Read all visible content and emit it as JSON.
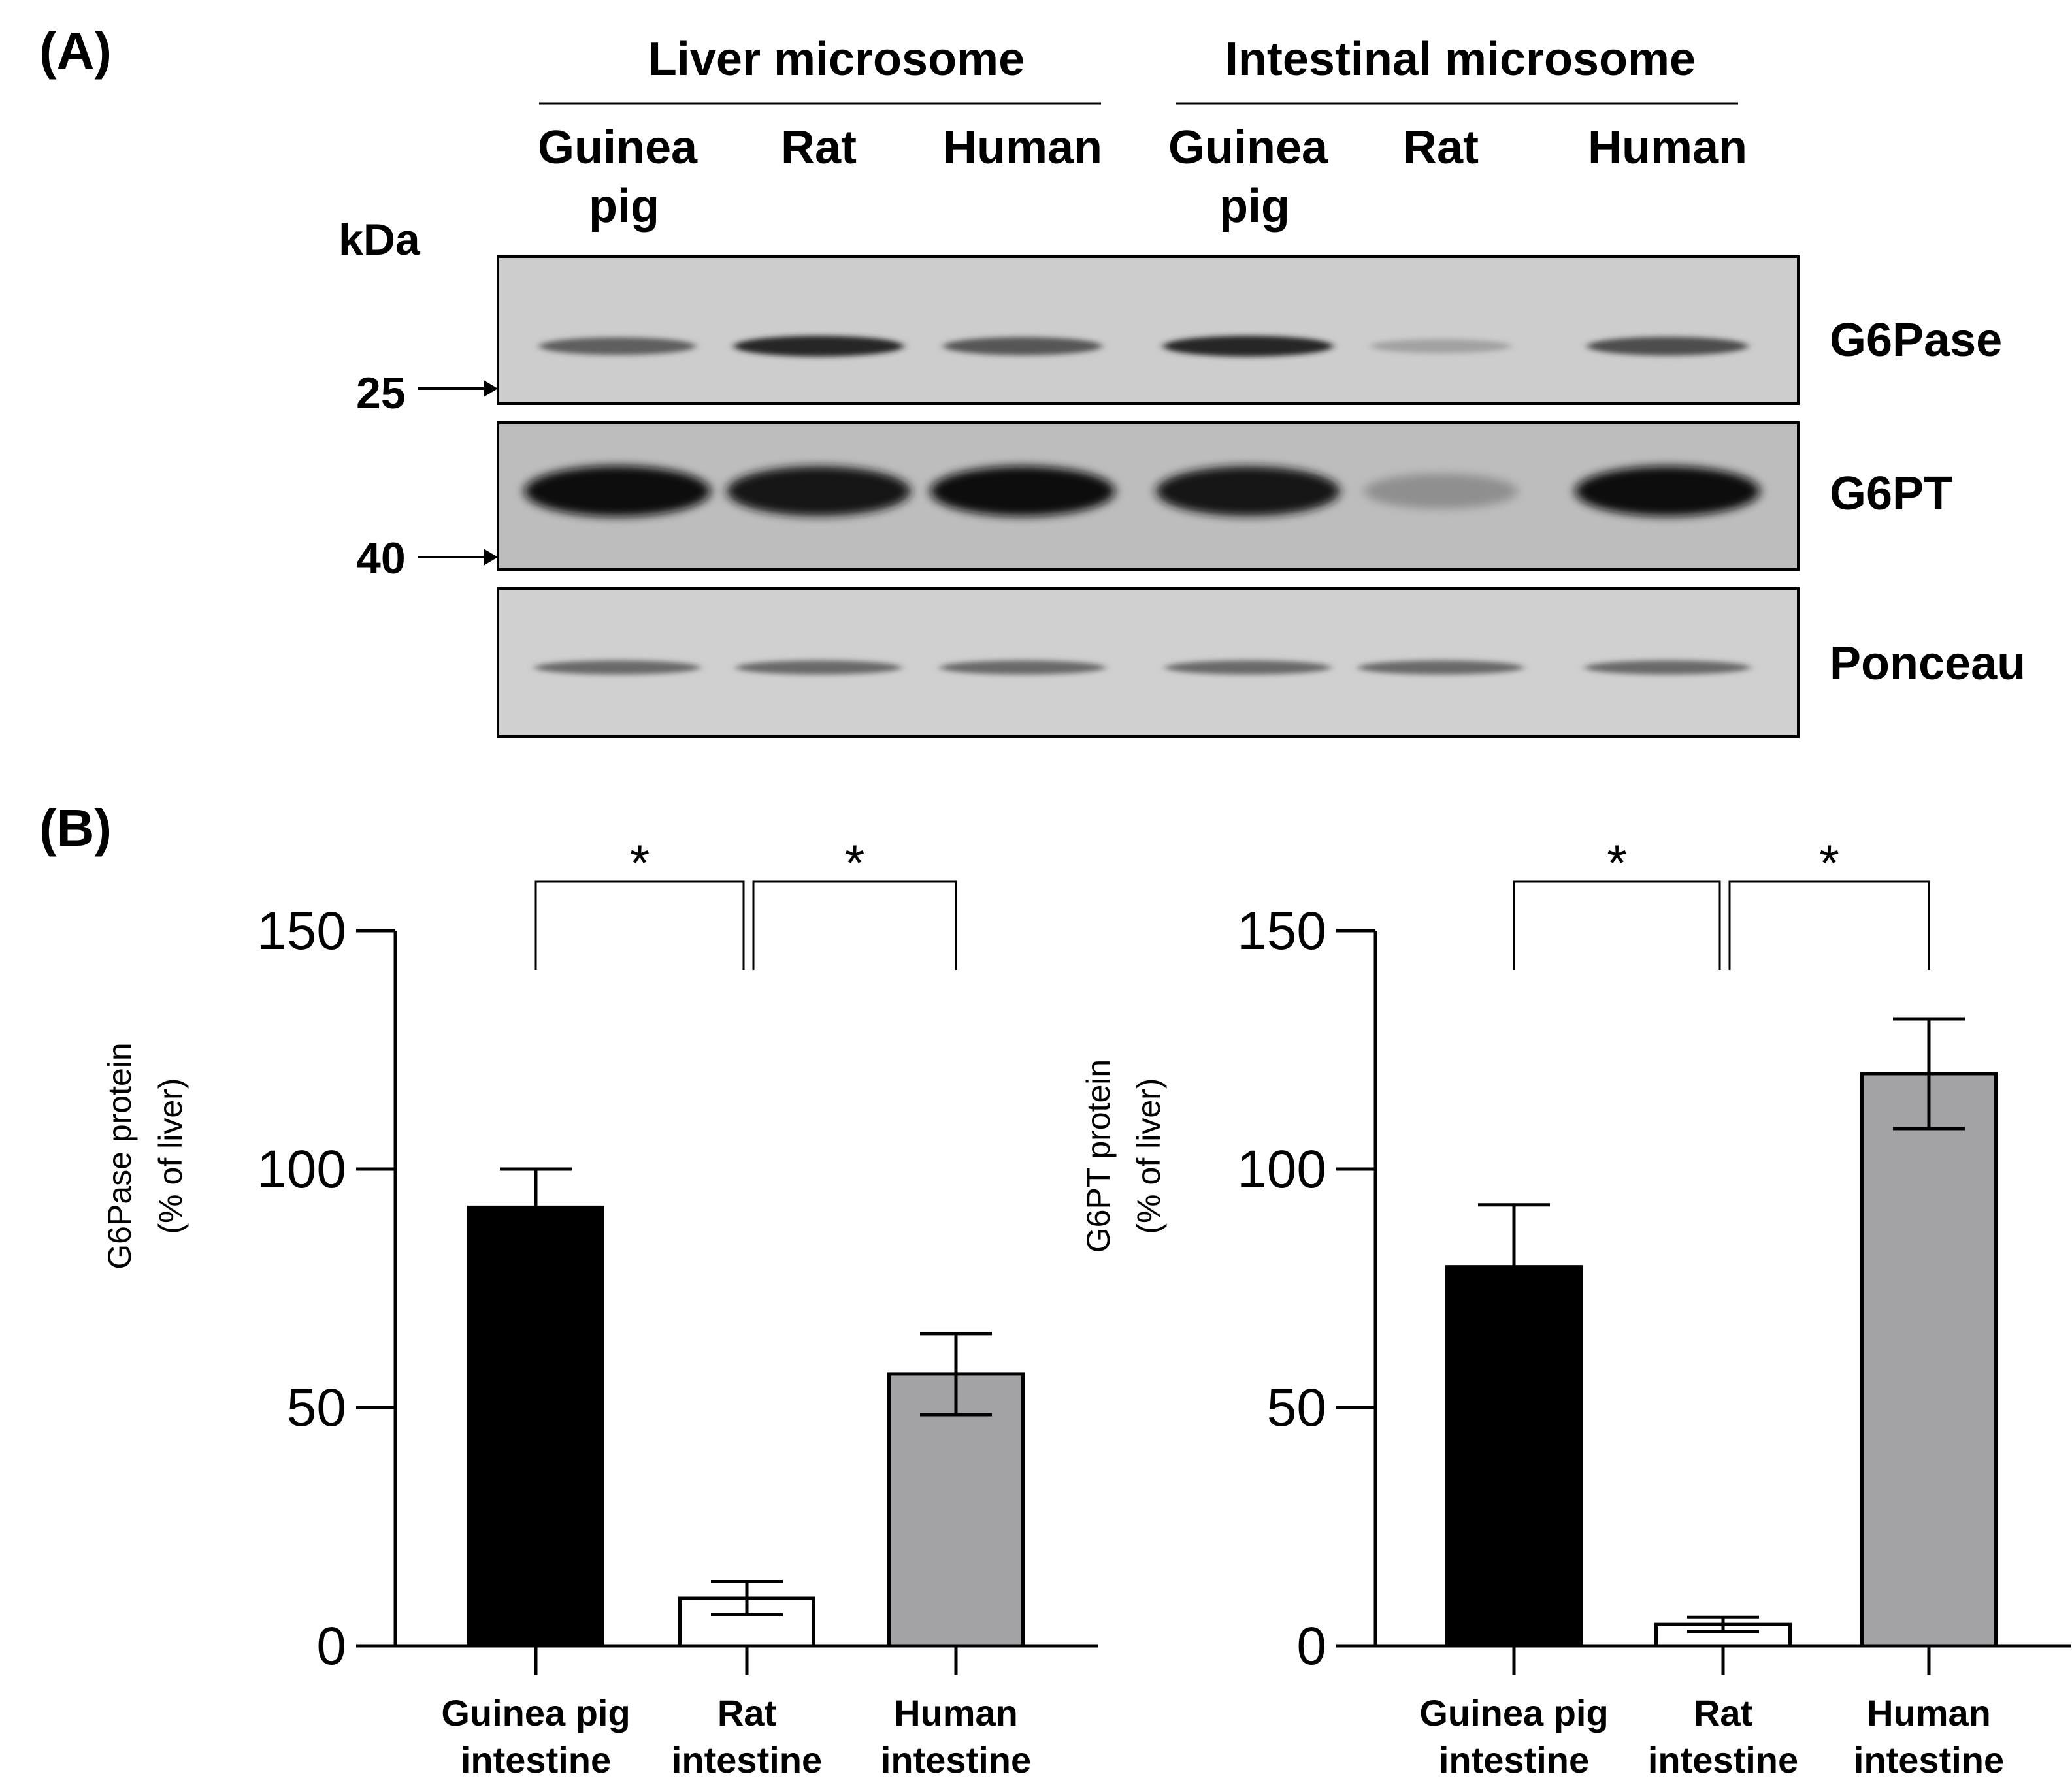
{
  "panel_a": {
    "label": "(A)",
    "groups": [
      {
        "name": "Liver microsome",
        "lanes": [
          [
            "Guinea",
            "pig"
          ],
          [
            "Rat"
          ],
          [
            "Human"
          ]
        ]
      },
      {
        "name": "Intestinal microsome",
        "lanes": [
          [
            "Guinea",
            "pig"
          ],
          [
            "Rat"
          ],
          [
            "Human"
          ]
        ]
      }
    ],
    "kda_label": "kDa",
    "markers": [
      "25",
      "40"
    ],
    "blots": [
      {
        "name": "G6Pase",
        "intensity": [
          0.55,
          0.85,
          0.6,
          0.85,
          0.2,
          0.65
        ]
      },
      {
        "name": "G6PT",
        "intensity": [
          1.0,
          0.95,
          0.97,
          0.95,
          0.3,
          0.97
        ]
      },
      {
        "name": "Ponceau",
        "intensity": [
          0.5,
          0.5,
          0.5,
          0.5,
          0.5,
          0.5
        ]
      }
    ]
  },
  "panel_b": {
    "label": "(B)"
  },
  "chart_data": [
    {
      "type": "bar",
      "categories": [
        [
          "Guinea pig",
          "intestine"
        ],
        [
          "Rat",
          "intestine"
        ],
        [
          "Human",
          "intestine"
        ]
      ],
      "values": [
        92,
        10,
        57
      ],
      "errors": [
        8,
        3.5,
        8.5
      ],
      "bar_colors": [
        "#000000",
        "#ffffff",
        "#a3a3a6"
      ],
      "ylabel": [
        "G6Pase protein",
        "(% of liver)"
      ],
      "ylim": [
        0,
        150
      ],
      "yticks": [
        0,
        50,
        100,
        150
      ],
      "significance": [
        {
          "from": 0,
          "to": 1,
          "label": "*"
        },
        {
          "from": 1,
          "to": 2,
          "label": "*"
        }
      ],
      "grid": false
    },
    {
      "type": "bar",
      "categories": [
        [
          "Guinea pig",
          "intestine"
        ],
        [
          "Rat",
          "intestine"
        ],
        [
          "Human",
          "intestine"
        ]
      ],
      "values": [
        79.5,
        4.5,
        120
      ],
      "errors": [
        13,
        1.5,
        11.5
      ],
      "bar_colors": [
        "#000000",
        "#ffffff",
        "#a3a3a6"
      ],
      "ylabel": [
        "G6PT protein",
        "(% of liver)"
      ],
      "ylim": [
        0,
        150
      ],
      "yticks": [
        0,
        50,
        100,
        150
      ],
      "significance": [
        {
          "from": 0,
          "to": 1,
          "label": "*"
        },
        {
          "from": 1,
          "to": 2,
          "label": "*"
        }
      ],
      "grid": false
    }
  ]
}
